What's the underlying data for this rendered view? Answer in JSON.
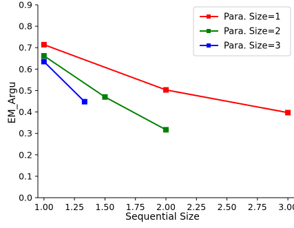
{
  "chart_data": {
    "type": "line",
    "title": "",
    "xlabel": "Sequential Size",
    "ylabel": "EM_Argu",
    "xlim": [
      0.95,
      3.05
    ],
    "ylim": [
      0.0,
      0.9
    ],
    "xticks": [
      "1.00",
      "1.25",
      "1.50",
      "1.75",
      "2.00",
      "2.25",
      "2.50",
      "2.75",
      "3.00"
    ],
    "yticks": [
      "0.0",
      "0.1",
      "0.2",
      "0.3",
      "0.4",
      "0.5",
      "0.6",
      "0.7",
      "0.8",
      "0.9"
    ],
    "grid": false,
    "legend_position": "top-right",
    "series": [
      {
        "name": "Para. Size=1",
        "color": "#ff0000",
        "x": [
          1.0,
          2.0,
          3.0
        ],
        "y": [
          0.714,
          0.503,
          0.397
        ]
      },
      {
        "name": "Para. Size=2",
        "color": "#008000",
        "x": [
          1.0,
          1.5,
          2.0
        ],
        "y": [
          0.662,
          0.47,
          0.317
        ]
      },
      {
        "name": "Para. Size=3",
        "color": "#0000ff",
        "x": [
          1.0,
          1.333
        ],
        "y": [
          0.635,
          0.448
        ]
      }
    ]
  }
}
